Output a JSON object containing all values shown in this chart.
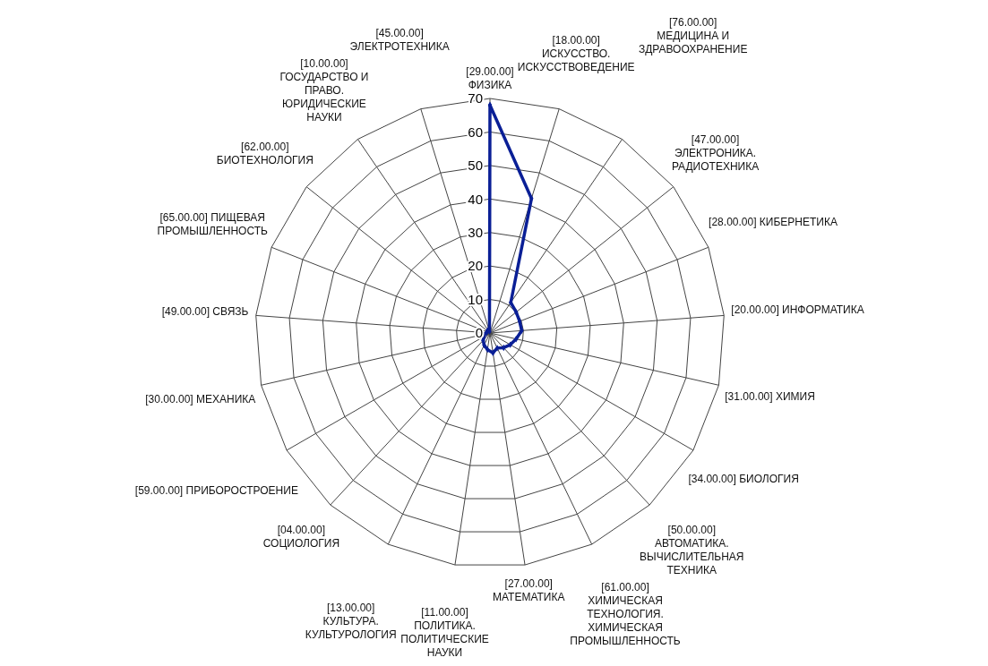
{
  "chart_data": {
    "type": "radar",
    "categories": [
      "[29.00.00] ФИЗИКА",
      "[18.00.00] ИСКУССТВО. ИСКУССТВОВЕДЕНИЕ",
      "[76.00.00] МЕДИЦИНА И ЗДРАВООХРАНЕНИЕ",
      "[47.00.00] ЭЛЕКТРОНИКА. РАДИОТЕХНИКА",
      "[28.00.00] КИБЕРНЕТИКА",
      "[20.00.00] ИНФОРМАТИКА",
      "[31.00.00] ХИМИЯ",
      "[34.00.00] БИОЛОГИЯ",
      "[50.00.00] АВТОМАТИКА. ВЫЧИСЛИТЕЛЬНАЯ ТЕХНИКА",
      "[61.00.00] ХИМИЧЕСКАЯ ТЕХНОЛОГИЯ. ХИМИЧЕСКАЯ ПРОМЫШЛЕННОСТЬ",
      "[27.00.00] МАТЕМАТИКА",
      "[11.00.00] ПОЛИТИКА. ПОЛИТИЧЕСКИЕ НАУКИ",
      "[13.00.00] КУЛЬТУРА. КУЛЬТУРОЛОГИЯ",
      "[04.00.00] СОЦИОЛОГИЯ",
      "[59.00.00] ПРИБОРОСТРОЕНИЕ",
      "[30.00.00] МЕХАНИКА",
      "[49.00.00] СВЯЗЬ",
      "[65.00.00] ПИЩЕВАЯ ПРОМЫШЛЕННОСТЬ",
      "[62.00.00] БИОТЕХНОЛОГИЯ",
      "[10.00.00] ГОСУДАРСТВО И ПРАВО. ЮРИДИЧЕСКИЕ НАУКИ",
      "[45.00.00] ЭЛЕКТРОТЕХНИКА"
    ],
    "series": [
      {
        "color": "#0a1f96",
        "values": [
          68,
          42,
          11,
          10,
          9.5,
          9.5,
          8,
          7,
          6,
          5,
          6,
          5,
          4,
          3,
          2,
          2,
          1,
          1,
          1,
          1,
          0.5
        ]
      }
    ],
    "ylim": [
      0,
      70
    ],
    "yticks": [
      0,
      10,
      20,
      30,
      40,
      50,
      60,
      70
    ],
    "grid": true,
    "marker": "diamond",
    "legend": false
  }
}
